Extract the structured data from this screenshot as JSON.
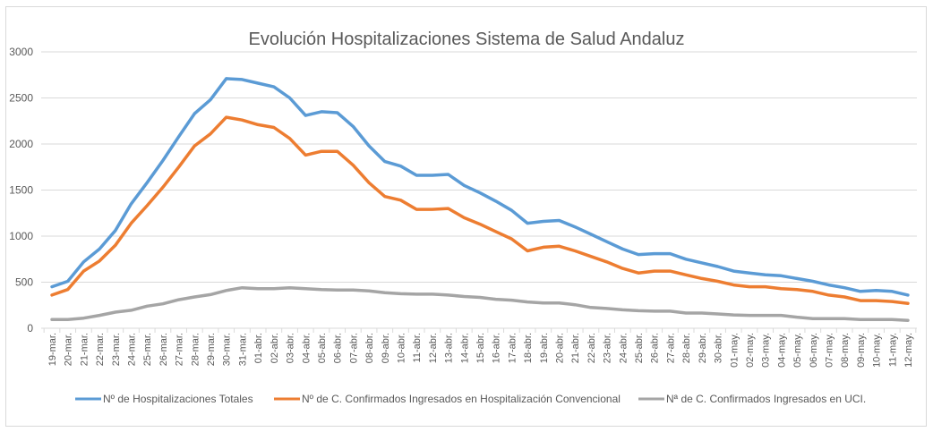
{
  "chart_data": {
    "type": "line",
    "title": "Evolución Hospitalizaciones Sistema de Salud Andaluz",
    "xlabel": "",
    "ylabel": "",
    "ylim": [
      0,
      3000
    ],
    "yticks": [
      "0",
      "500",
      "1000",
      "1500",
      "2000",
      "2500",
      "3000"
    ],
    "ytick_values": [
      0,
      500,
      1000,
      1500,
      2000,
      2500,
      3000
    ],
    "grid": true,
    "legend_position": "bottom",
    "categories": [
      "19-mar.",
      "20-mar.",
      "21-mar.",
      "22-mar.",
      "23-mar.",
      "24-mar.",
      "25-mar.",
      "26-mar.",
      "27-mar.",
      "28-mar.",
      "29-mar.",
      "30-mar.",
      "31-mar.",
      "01-abr.",
      "02-abr.",
      "03-abr.",
      "04-abr.",
      "05-abr.",
      "06-abr.",
      "07-abr.",
      "08-abr.",
      "09-abr.",
      "10-abr.",
      "11-abr.",
      "12-abr.",
      "13-abr.",
      "14-abr.",
      "15-abr.",
      "16-abr.",
      "17-abr.",
      "18-abr.",
      "19-abr.",
      "20-abr.",
      "21-abr.",
      "22-abr.",
      "23-abr.",
      "24-abr.",
      "25-abr.",
      "26-abr.",
      "27-abr.",
      "28-abr.",
      "29-abr.",
      "30-abr.",
      "01-may.",
      "02-may.",
      "03-may.",
      "04-may.",
      "05-may.",
      "06-may.",
      "07-may.",
      "08-may.",
      "09-may.",
      "10-may.",
      "11-may.",
      "12-may."
    ],
    "series": [
      {
        "name": "Nº de Hospitalizaciones Totales",
        "color": "#5b9bd5",
        "values": [
          450,
          510,
          720,
          860,
          1060,
          1350,
          1580,
          1820,
          2080,
          2330,
          2480,
          2710,
          2700,
          2660,
          2620,
          2500,
          2310,
          2350,
          2340,
          2190,
          1980,
          1810,
          1760,
          1660,
          1660,
          1670,
          1550,
          1470,
          1380,
          1280,
          1140,
          1160,
          1170,
          1100,
          1020,
          940,
          860,
          800,
          810,
          810,
          750,
          710,
          670,
          620,
          600,
          580,
          570,
          540,
          510,
          470,
          440,
          400,
          410,
          400,
          360
        ]
      },
      {
        "name": "Nº de C. Confirmados Ingresados en Hospitalización Convencional",
        "color": "#ed7d31",
        "values": [
          360,
          420,
          620,
          730,
          900,
          1140,
          1330,
          1530,
          1750,
          1980,
          2110,
          2290,
          2260,
          2210,
          2180,
          2060,
          1880,
          1920,
          1920,
          1770,
          1580,
          1430,
          1390,
          1290,
          1290,
          1300,
          1200,
          1130,
          1050,
          970,
          840,
          880,
          890,
          840,
          780,
          720,
          650,
          600,
          620,
          620,
          580,
          540,
          510,
          470,
          450,
          450,
          430,
          420,
          400,
          360,
          340,
          300,
          300,
          290,
          270
        ]
      },
      {
        "name": "Nª de C. Confirmados Ingresados en UCI.",
        "color": "#a5a5a5",
        "values": [
          95,
          95,
          110,
          140,
          175,
          195,
          240,
          265,
          310,
          340,
          365,
          410,
          440,
          430,
          430,
          440,
          430,
          420,
          415,
          415,
          405,
          385,
          375,
          370,
          370,
          360,
          345,
          335,
          315,
          305,
          285,
          275,
          275,
          255,
          225,
          215,
          200,
          190,
          185,
          185,
          165,
          165,
          155,
          145,
          140,
          140,
          140,
          120,
          105,
          105,
          105,
          95,
          95,
          95,
          85
        ]
      }
    ]
  },
  "colors": {
    "grid": "#d9d9d9",
    "text": "#595959",
    "frame": "#d9d9d9"
  }
}
